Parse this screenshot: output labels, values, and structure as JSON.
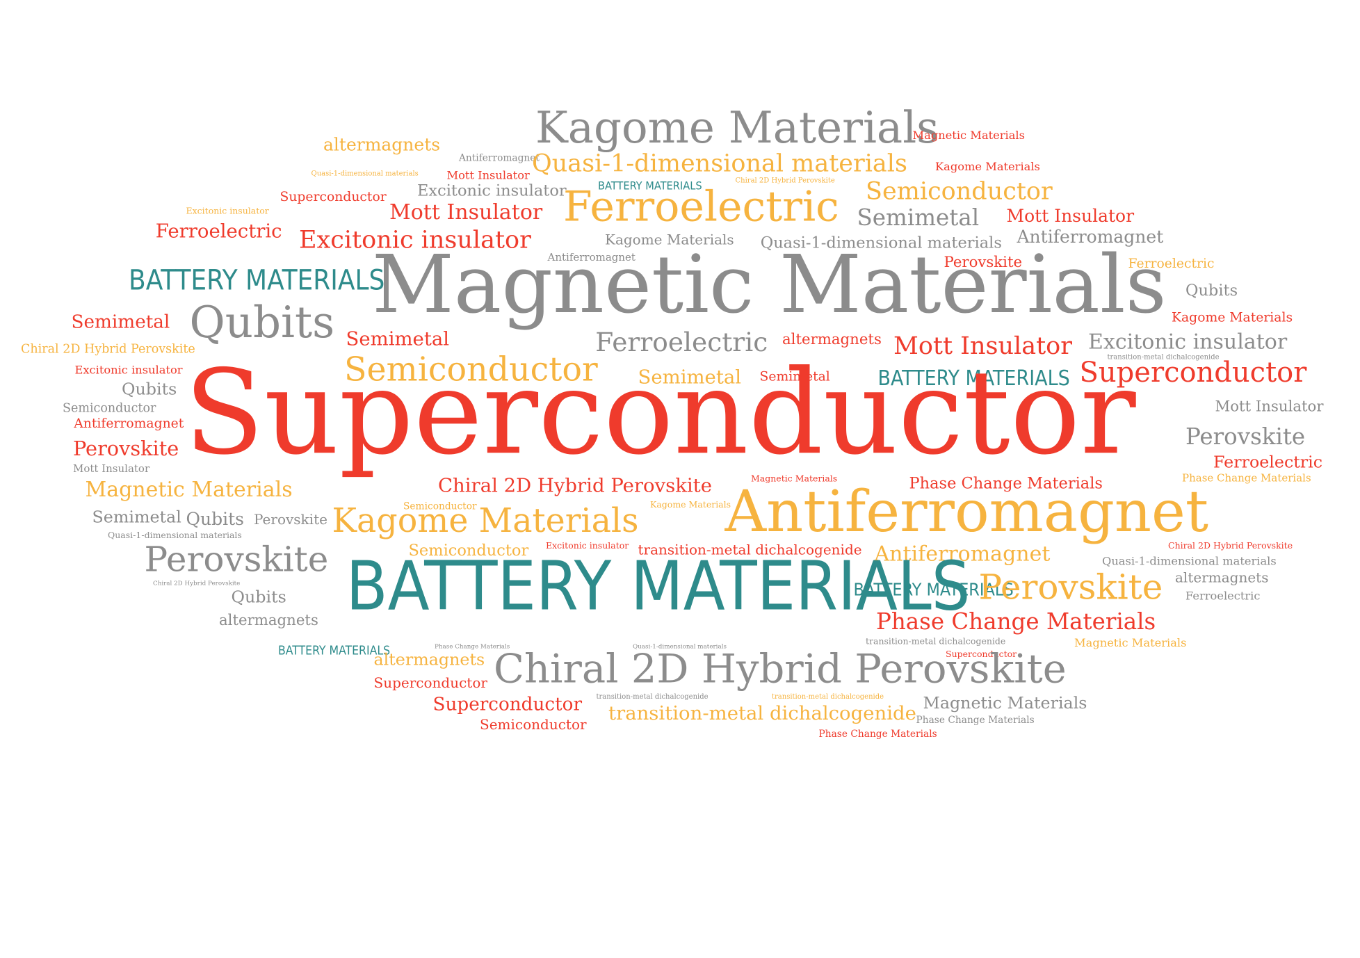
{
  "palette": {
    "red": "#ef3b2c",
    "orange": "#f6b33f",
    "gray": "#8c8c8c",
    "teal": "#2e8b8b"
  },
  "words": [
    "Kagome Materials",
    "Magnetic Materials",
    "altermagnets",
    "Antiferromagnet",
    "Quasi-1-dimensional materials",
    "Kagome Materials",
    "Quasi-1-dimensional materials",
    "Mott Insulator",
    "Battery Materials",
    "Chiral 2D Hybrid Perovskite",
    "Superconductor",
    "Excitonic insulator",
    "Semiconductor",
    "Excitonic insulator",
    "Mott Insulator",
    "Ferroelectric",
    "Semimetal",
    "Mott Insulator",
    "Ferroelectric",
    "Excitonic insulator",
    "Kagome Materials",
    "Quasi-1-dimensional materials",
    "Antiferromagnet",
    "Antiferromagnet",
    "Perovskite",
    "Battery Materials",
    "Magnetic Materials",
    "Ferroelectric",
    "Qubits",
    "Kagome Materials",
    "Semimetal",
    "Qubits",
    "Semimetal",
    "Ferroelectric",
    "altermagnets",
    "Mott Insulator",
    "Excitonic insulator",
    "Chiral 2D Hybrid Perovskite",
    "transition-metal dichalcogenide",
    "Semiconductor",
    "Semimetal",
    "Semimetal",
    "Battery Materials",
    "Superconductor",
    "Excitonic insulator",
    "Qubits",
    "Mott Insulator",
    "Semiconductor",
    "Superconductor",
    "Antiferromagnet",
    "Perovskite",
    "Perovskite",
    "Ferroelectric",
    "Mott Insulator",
    "Chiral 2D Hybrid Perovskite",
    "Magnetic Materials",
    "Phase Change Materials",
    "Phase Change Materials",
    "Magnetic Materials",
    "Antiferromagnet",
    "Semiconductor",
    "Kagome Materials",
    "Semimetal",
    "Qubits",
    "Perovskite",
    "Kagome Materials",
    "Quasi-1-dimensional materials",
    "Semiconductor",
    "Excitonic insulator",
    "transition-metal dichalcogenide",
    "Antiferromagnet",
    "Chiral 2D Hybrid Perovskite",
    "Perovskite",
    "Quasi-1-dimensional materials",
    "Chiral 2D Hybrid Perovskite",
    "Battery Materials",
    "altermagnets",
    "Qubits",
    "Battery Materials",
    "Perovskite",
    "Ferroelectric",
    "altermagnets",
    "Phase Change Materials",
    "transition-metal dichalcogenide",
    "Battery Materials",
    "Phase Change Materials",
    "Quasi-1-dimensional materials",
    "Magnetic Materials",
    "altermagnets",
    "Superconductor",
    "Chiral 2D Hybrid Perovskite",
    "Superconductor",
    "Superconductor",
    "transition-metal dichalcogenide",
    "transition-metal dichalcogenide",
    "Magnetic Materials",
    "Semiconductor",
    "transition-metal dichalcogenide",
    "Phase Change Materials",
    "Phase Change Materials"
  ]
}
